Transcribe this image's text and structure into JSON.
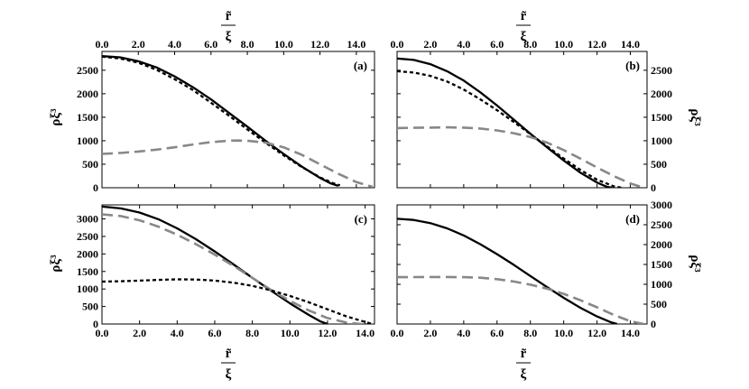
{
  "figure": {
    "xlabel_top": "r̃",
    "xlabel_bottom": "ξ",
    "ylabel": "ρξ³"
  },
  "chart_data": [
    {
      "type": "line",
      "panel_label": "(a)",
      "xlim": [
        0,
        15
      ],
      "ylim": [
        0,
        2900
      ],
      "xticks": [
        0,
        2,
        4,
        6,
        8,
        10,
        12,
        14
      ],
      "yticks": [
        0,
        500,
        1000,
        1500,
        2000,
        2500
      ],
      "y_axis_side": "left",
      "x_tick_side": "top",
      "series": [
        {
          "style": "solid",
          "color": "#000000",
          "x": [
            0,
            1,
            2,
            3,
            4,
            5,
            6,
            7,
            8,
            9,
            10,
            11,
            12,
            12.6,
            13.0
          ],
          "y": [
            2800,
            2775,
            2690,
            2560,
            2370,
            2140,
            1880,
            1590,
            1300,
            1000,
            720,
            450,
            210,
            90,
            40
          ]
        },
        {
          "style": "dotted",
          "color": "#000000",
          "x": [
            0,
            1,
            2,
            3,
            4,
            5,
            6,
            7,
            8,
            9,
            10,
            11,
            12,
            12.7,
            13.1
          ],
          "y": [
            2790,
            2750,
            2660,
            2510,
            2310,
            2080,
            1810,
            1530,
            1240,
            960,
            690,
            440,
            220,
            100,
            50
          ]
        },
        {
          "style": "dashed",
          "color": "#888888",
          "x": [
            0,
            1,
            2,
            3,
            4,
            5,
            6,
            7,
            7.5,
            8,
            9,
            10,
            11,
            12,
            13,
            14,
            14.9
          ],
          "y": [
            720,
            740,
            770,
            810,
            860,
            920,
            970,
            1000,
            1005,
            1000,
            960,
            860,
            700,
            500,
            300,
            120,
            20
          ]
        }
      ]
    },
    {
      "type": "line",
      "panel_label": "(b)",
      "xlim": [
        0,
        15
      ],
      "ylim": [
        0,
        2900
      ],
      "xticks": [
        0,
        2,
        4,
        6,
        8,
        10,
        12,
        14
      ],
      "yticks": [
        0,
        500,
        1000,
        1500,
        2000,
        2500
      ],
      "y_axis_side": "right",
      "x_tick_side": "top",
      "series": [
        {
          "style": "solid",
          "color": "#000000",
          "x": [
            0,
            1,
            2,
            3,
            4,
            5,
            6,
            7,
            8,
            9,
            10,
            11,
            12,
            12.6,
            12.9
          ],
          "y": [
            2750,
            2720,
            2630,
            2480,
            2280,
            2030,
            1750,
            1450,
            1150,
            860,
            580,
            320,
            110,
            20,
            0
          ]
        },
        {
          "style": "dotted",
          "color": "#000000",
          "x": [
            0,
            1,
            2,
            3,
            4,
            5,
            6,
            7,
            8,
            9,
            10,
            11,
            12,
            13,
            13.5
          ],
          "y": [
            2480,
            2450,
            2380,
            2260,
            2090,
            1880,
            1650,
            1400,
            1140,
            880,
            620,
            380,
            170,
            30,
            0
          ]
        },
        {
          "style": "dashed",
          "color": "#888888",
          "x": [
            0,
            1,
            2,
            3,
            4,
            5,
            6,
            7,
            8,
            9,
            10,
            11,
            12,
            13,
            14,
            14.8
          ],
          "y": [
            1270,
            1275,
            1280,
            1285,
            1280,
            1260,
            1220,
            1160,
            1080,
            960,
            800,
            620,
            430,
            250,
            90,
            0
          ]
        }
      ]
    },
    {
      "type": "line",
      "panel_label": "(c)",
      "xlim": [
        0,
        14.5
      ],
      "ylim": [
        0,
        3400
      ],
      "xticks": [
        0,
        2,
        4,
        6,
        8,
        10,
        12,
        14
      ],
      "yticks": [
        0,
        500,
        1000,
        1500,
        2000,
        2500,
        3000
      ],
      "y_axis_side": "left",
      "x_tick_side": "bottom",
      "series": [
        {
          "style": "solid",
          "color": "#000000",
          "x": [
            0,
            1,
            2,
            3,
            4,
            5,
            6,
            7,
            8,
            9,
            10,
            11,
            11.6,
            12.0
          ],
          "y": [
            3350,
            3300,
            3180,
            2990,
            2730,
            2420,
            2070,
            1700,
            1320,
            950,
            590,
            260,
            80,
            0
          ]
        },
        {
          "style": "dashed",
          "color": "#888888",
          "x": [
            0,
            1,
            2,
            3,
            4,
            5,
            6,
            7,
            8,
            9,
            10,
            11,
            12,
            13,
            13.8
          ],
          "y": [
            3130,
            3080,
            2960,
            2780,
            2550,
            2280,
            1980,
            1660,
            1320,
            970,
            660,
            390,
            170,
            40,
            0
          ]
        },
        {
          "style": "dotted",
          "color": "#000000",
          "x": [
            0,
            1,
            2,
            3,
            4,
            5,
            6,
            7,
            8,
            9,
            10,
            11,
            12,
            13,
            14,
            14.4
          ],
          "y": [
            1210,
            1220,
            1240,
            1260,
            1275,
            1270,
            1240,
            1180,
            1090,
            960,
            800,
            620,
            420,
            220,
            60,
            0
          ]
        }
      ]
    },
    {
      "type": "line",
      "panel_label": "(d)",
      "xlim": [
        0,
        15
      ],
      "ylim": [
        0,
        3000
      ],
      "xticks": [
        0,
        2,
        4,
        6,
        8,
        10,
        12,
        14
      ],
      "yticks": [
        0,
        500,
        1000,
        1500,
        2000,
        2500,
        3000
      ],
      "y_axis_side": "right",
      "x_tick_side": "bottom",
      "series": [
        {
          "style": "solid",
          "color": "#000000",
          "x": [
            0,
            1,
            2,
            3,
            4,
            5,
            6,
            7,
            8,
            9,
            10,
            11,
            12,
            12.8,
            13.2
          ],
          "y": [
            2650,
            2620,
            2540,
            2410,
            2230,
            2010,
            1760,
            1490,
            1210,
            930,
            660,
            410,
            190,
            50,
            0
          ]
        },
        {
          "style": "dashed",
          "color": "#888888",
          "x": [
            0,
            1,
            2,
            3,
            4,
            5,
            6,
            7,
            8,
            9,
            10,
            11,
            12,
            13,
            14,
            14.8
          ],
          "y": [
            1180,
            1182,
            1185,
            1185,
            1180,
            1165,
            1130,
            1070,
            990,
            890,
            760,
            600,
            420,
            230,
            70,
            0
          ]
        }
      ]
    }
  ]
}
